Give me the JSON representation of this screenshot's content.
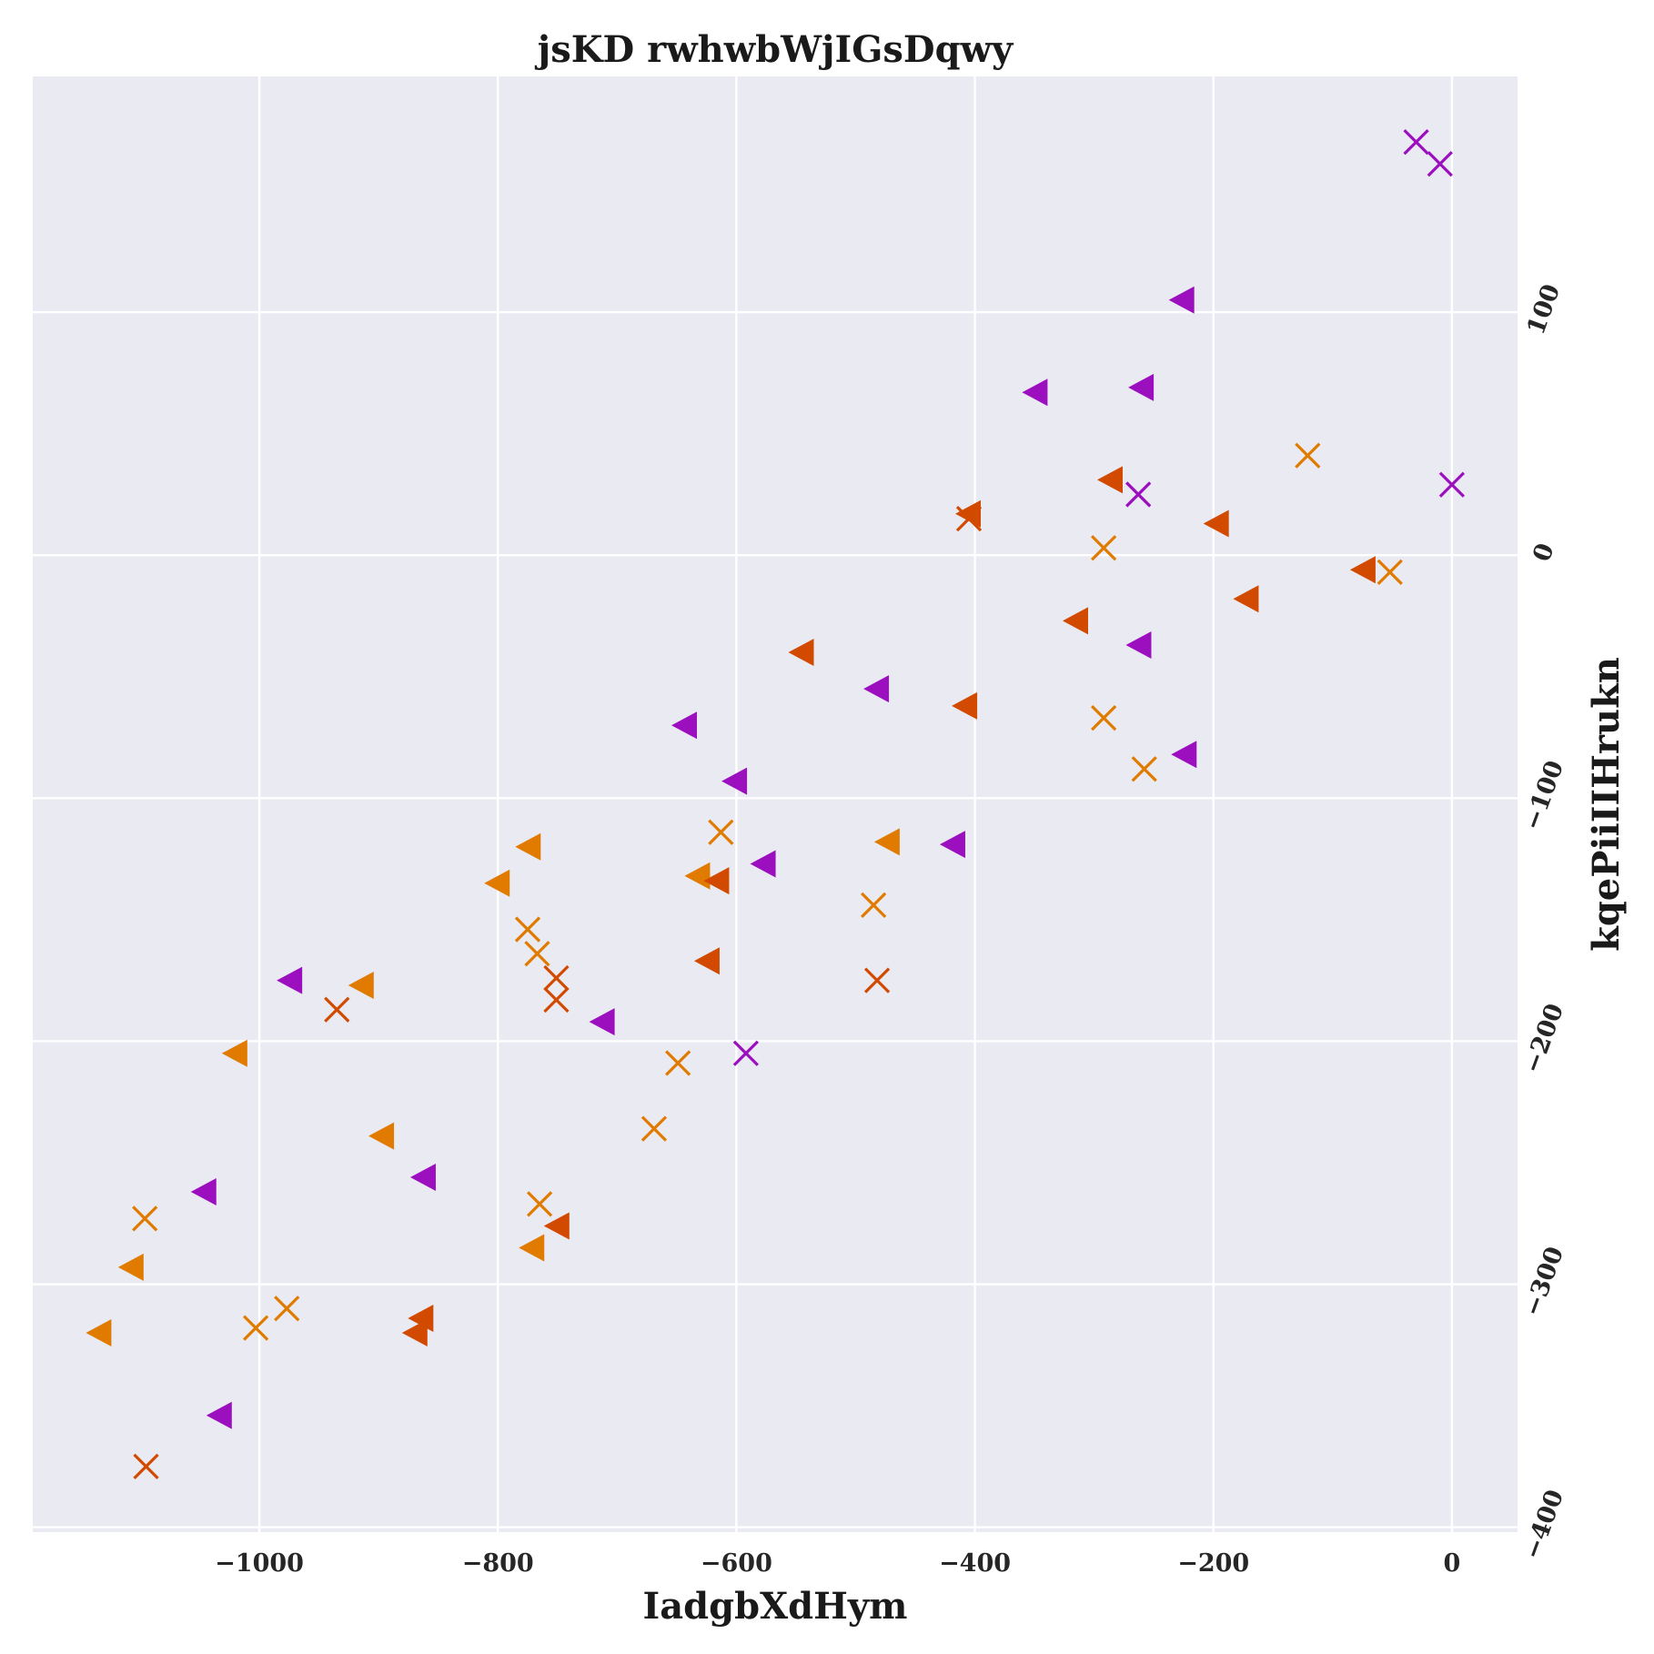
{
  "chart_data": {
    "type": "scatter",
    "title": "jsKD rwhwbWjIGsDqwy",
    "xlabel": "IadgbXdHym",
    "ylabel": "kqePiiIIHrukn",
    "xlim": [
      -1190,
      55
    ],
    "ylim": [
      -402,
      197
    ],
    "xticks": [
      -1000,
      -800,
      -600,
      -400,
      -200,
      0
    ],
    "yticks": [
      -400,
      -300,
      -200,
      -100,
      0,
      100
    ],
    "grid": true,
    "legend": "none",
    "series": [
      {
        "color": "#9b0fbf",
        "marker": "x",
        "points": [
          [
            -30,
            170
          ],
          [
            -10,
            161
          ],
          [
            0,
            29
          ],
          [
            -263,
            25
          ],
          [
            -592,
            -205
          ]
        ]
      },
      {
        "color": "#9b0fbf",
        "marker": "triangle-left",
        "points": [
          [
            -226,
            105
          ],
          [
            -349,
            67
          ],
          [
            -260,
            69
          ],
          [
            -262,
            -37
          ],
          [
            -482,
            -55
          ],
          [
            -643,
            -70
          ],
          [
            -601,
            -93
          ],
          [
            -224,
            -82
          ],
          [
            -418,
            -119
          ],
          [
            -577,
            -127
          ],
          [
            -712,
            -192
          ],
          [
            -974,
            -175
          ],
          [
            -1046,
            -262
          ],
          [
            -862,
            -256
          ],
          [
            -1033,
            -354
          ]
        ]
      },
      {
        "color": "#e07b00",
        "marker": "x",
        "points": [
          [
            -121,
            41
          ],
          [
            -292,
            3
          ],
          [
            -52,
            -7
          ],
          [
            -292,
            -67
          ],
          [
            -258,
            -88
          ],
          [
            -613,
            -114
          ],
          [
            -485,
            -144
          ],
          [
            -775,
            -154
          ],
          [
            -767,
            -164
          ],
          [
            -649,
            -209
          ],
          [
            -669,
            -236
          ],
          [
            -765,
            -267
          ],
          [
            -1096,
            -273
          ],
          [
            -977,
            -310
          ],
          [
            -1003,
            -318
          ]
        ]
      },
      {
        "color": "#e07b00",
        "marker": "triangle-left",
        "points": [
          [
            -473,
            -118
          ],
          [
            -774,
            -120
          ],
          [
            -800,
            -135
          ],
          [
            -632,
            -132
          ],
          [
            -914,
            -177
          ],
          [
            -1020,
            -205
          ],
          [
            -897,
            -239
          ],
          [
            -771,
            -285
          ],
          [
            -1107,
            -293
          ],
          [
            -1134,
            -320
          ]
        ]
      },
      {
        "color": "#d14a00",
        "marker": "x",
        "points": [
          [
            -405,
            15
          ],
          [
            -751,
            -174
          ],
          [
            -751,
            -183
          ],
          [
            -482,
            -175
          ],
          [
            -935,
            -187
          ],
          [
            -1095,
            -375
          ]
        ]
      },
      {
        "color": "#d14a00",
        "marker": "triangle-left",
        "points": [
          [
            -286,
            31
          ],
          [
            -405,
            17
          ],
          [
            -197,
            13
          ],
          [
            -74,
            -6
          ],
          [
            -172,
            -18
          ],
          [
            -315,
            -27
          ],
          [
            -545,
            -40
          ],
          [
            -408,
            -62
          ],
          [
            -616,
            -134
          ],
          [
            -624,
            -167
          ],
          [
            -750,
            -276
          ],
          [
            -864,
            -314
          ],
          [
            -869,
            -320
          ]
        ]
      }
    ]
  }
}
